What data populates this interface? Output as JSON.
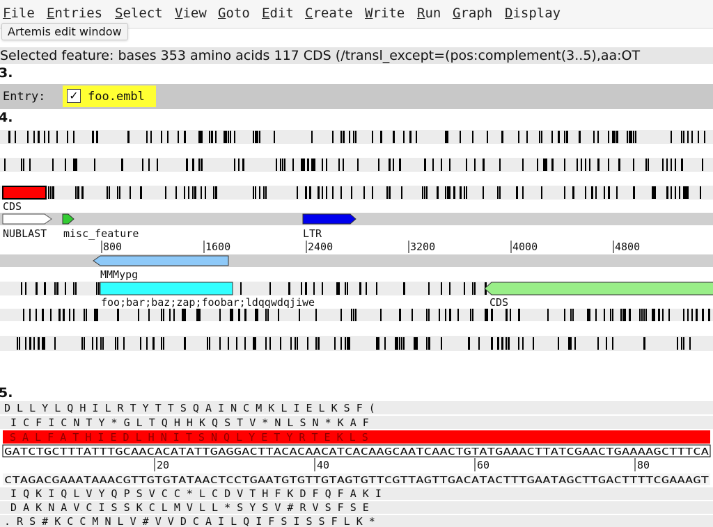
{
  "menubar": {
    "items": [
      {
        "first": "F",
        "rest": "ile"
      },
      {
        "first": "E",
        "rest": "ntries"
      },
      {
        "first": "S",
        "rest": "elect"
      },
      {
        "first": "V",
        "rest": "iew"
      },
      {
        "first": "G",
        "rest": "oto"
      },
      {
        "first": "E",
        "rest": "dit"
      },
      {
        "first": "C",
        "rest": "reate"
      },
      {
        "first": "W",
        "rest": "rite"
      },
      {
        "first": "R",
        "rest": "un"
      },
      {
        "first": "G",
        "rest": "raph"
      },
      {
        "first": "D",
        "rest": "isplay"
      }
    ]
  },
  "tooltip": {
    "text": "Artemis edit window"
  },
  "selection": {
    "text": "Selected feature:  bases 353  amino acids 117  CDS  (/transl_except=(pos:complement(3..5),aa:OT"
  },
  "steps": {
    "s3": "3.",
    "s4": "4.",
    "s5": "5."
  },
  "entry": {
    "label": "Entry:",
    "checked": "✓",
    "name": "foo.embl"
  },
  "feature_view": {
    "labels": {
      "cds_top": "CDS",
      "blast": "NUBLAST",
      "misc": "misc_feature",
      "ltr": "LTR",
      "mmmypg": "MMMypg",
      "foo": "foo;bar;baz;zap;foobar;ldqqwdqjiwe",
      "cds_right": "CDS"
    },
    "ruler": [
      "800",
      "1600",
      "2400",
      "3200",
      "4000",
      "4800"
    ]
  },
  "sequence_view": {
    "aa_top": [
      "D L L Y L Q H I L R T Y T T S Q A I N C M K L I E L K S F (",
      " I C F I C N T Y * G L T Q H H K Q S T V * N L S N * K A F",
      "S A L F A T H I E D L H N I T S N Q L Y E T Y R T E K L S"
    ],
    "dna_fwd": "GATCTGCTTTATTTGCAACACATATTGAGGACTTACACAACATCACAAGCAATCAACTGTATGAAACTTATCGAACTGAAAAGCTTTCA",
    "ruler": [
      "20",
      "40",
      "60",
      "80"
    ],
    "dna_rev": "CTAGACGAAATAAACGTTGTGTATAACTCCTGAATGTGTTGTAGTGTTCGTTAGTTGACATACTTTGAATAGCTTGACTTTTCGAAAGT",
    "aa_bottom": [
      " I Q K I Q L V Y Q P S V C C * L C D V T H F K D F Q F A K I",
      " D A K N A V C I S S K C L M V L L * S Y S V # R V S F S E",
      ". R S # K C C M N L V # V V D C A I L Q I F S I S S F L K *"
    ]
  },
  "colors": {
    "stop_mark": "#000000",
    "frame_track": "#ececec",
    "cds_selected": "#ff0000",
    "misc_feature": "#33cc33",
    "ltr": "#0000ee",
    "mmmypg": "#8ec9f8",
    "foo_feature": "#33ffff",
    "cds_right": "#99ee88",
    "strand": "#cfcfcf",
    "entry_highlight": "#ffff33"
  }
}
